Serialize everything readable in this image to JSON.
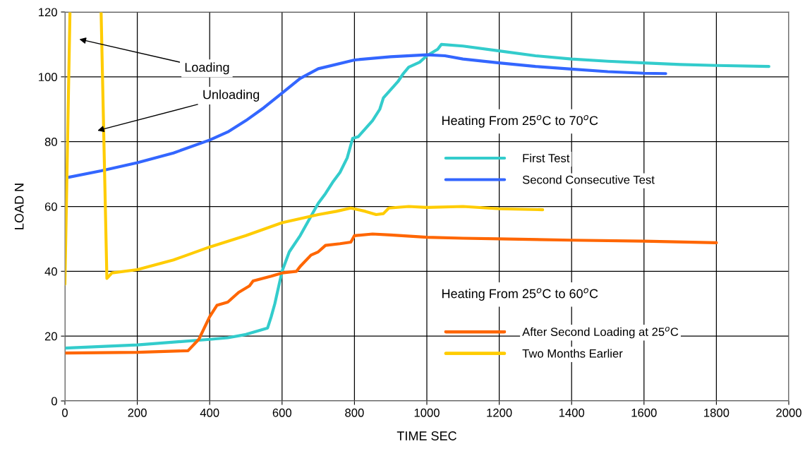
{
  "chart_data": {
    "type": "line",
    "xlabel": "TIME SEC",
    "ylabel": "LOAD N",
    "xlim": [
      0,
      2000
    ],
    "xticks": [
      0,
      200,
      400,
      600,
      800,
      1000,
      1200,
      1400,
      1600,
      1800,
      2000
    ],
    "ylim": [
      0,
      120
    ],
    "yticks": [
      0,
      20,
      40,
      60,
      80,
      100,
      120
    ],
    "grid": true,
    "legend": "right",
    "annotations": [
      "Heating From 25$^{o}$C to 70$^{o}$C",
      "Heating From 25$^{o}$C to 60$^{o}$C",
      "Loading",
      "Unloading"
    ],
    "series": [
      {
        "name": "First Test",
        "color": "#33cccc",
        "x": [
          0,
          200,
          400,
          450,
          500,
          560,
          570,
          580,
          590,
          600,
          620,
          650,
          680,
          700,
          720,
          740,
          760,
          780,
          790,
          795,
          810,
          830,
          850,
          870,
          880,
          900,
          920,
          935,
          950,
          980,
          1000,
          1030,
          1040,
          1100,
          1200,
          1300,
          1400,
          1500,
          1600,
          1700,
          1800,
          1945
        ],
        "values": [
          16.3,
          17.3,
          19,
          19.5,
          20.5,
          22.5,
          26,
          30,
          35,
          40,
          46,
          51,
          57,
          61,
          64,
          67.5,
          70.5,
          75,
          79,
          81,
          81.5,
          84,
          86.5,
          90,
          93.5,
          96,
          98.5,
          101,
          103,
          104.5,
          106.5,
          108.5,
          110,
          109.5,
          108,
          106.5,
          105.5,
          104.8,
          104.3,
          103.8,
          103.5,
          103.2
        ]
      },
      {
        "name": "Second Consecutive Test",
        "color": "#3366ff",
        "x": [
          0,
          100,
          200,
          300,
          400,
          450,
          500,
          550,
          600,
          650,
          700,
          800,
          900,
          1000,
          1050,
          1100,
          1200,
          1300,
          1400,
          1500,
          1600,
          1660
        ],
        "values": [
          68.8,
          71,
          73.5,
          76.5,
          80.5,
          83,
          86.5,
          90.5,
          95,
          99.5,
          102.5,
          105.2,
          106.2,
          106.8,
          106.5,
          105.5,
          104.3,
          103.2,
          102.4,
          101.6,
          101.1,
          101
        ]
      },
      {
        "name": "After Second Loading at 25$^{o}$C",
        "color": "#ff6600",
        "x": [
          0,
          200,
          340,
          370,
          400,
          420,
          450,
          480,
          510,
          520,
          570,
          600,
          640,
          650,
          680,
          700,
          720,
          760,
          790,
          800,
          850,
          900,
          1000,
          1100,
          1200,
          1400,
          1600,
          1800
        ],
        "values": [
          14.8,
          15,
          15.5,
          19,
          26,
          29.5,
          30.5,
          33.5,
          35.5,
          37,
          38.5,
          39.5,
          40,
          41.5,
          45,
          46,
          48,
          48.5,
          49,
          51,
          51.5,
          51.2,
          50.5,
          50.2,
          50,
          49.6,
          49.3,
          48.8
        ]
      },
      {
        "name": "Two Months Earlier",
        "color": "#ffcc00",
        "x": [
          0,
          14,
          15,
          100,
          116,
          130,
          200,
          300,
          400,
          500,
          600,
          700,
          750,
          790,
          830,
          860,
          880,
          895,
          950,
          1000,
          1100,
          1200,
          1320
        ],
        "values": [
          36,
          120,
          null,
          120,
          37.8,
          39.5,
          40.5,
          43.5,
          47.5,
          51,
          55,
          57.5,
          58.5,
          59.5,
          58.5,
          57.5,
          57.8,
          59.5,
          60,
          59.7,
          60,
          59.3,
          59
        ]
      }
    ]
  }
}
